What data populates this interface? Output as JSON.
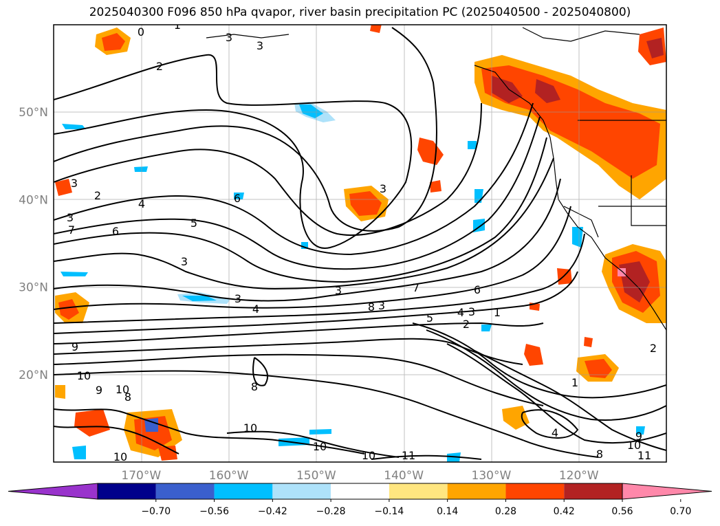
{
  "title": "2025040300 F096 850 hPa qvapor, river basin precipitation PC (2025040500 - 2025040800)",
  "chart_data": {
    "type": "contour-map",
    "title": "2025040300 F096 850 hPa qvapor, river basin precipitation PC (2025040500 - 2025040800)",
    "x_axis": {
      "ticks": [
        "170°W",
        "160°W",
        "150°W",
        "140°W",
        "130°W",
        "120°W"
      ],
      "tick_values": [
        -170,
        -160,
        -150,
        -140,
        -130,
        -120
      ]
    },
    "y_axis": {
      "ticks": [
        "20°N",
        "30°N",
        "40°N",
        "50°N"
      ],
      "tick_values": [
        20,
        30,
        40,
        50
      ]
    },
    "lon_range": [
      -180,
      -110
    ],
    "lat_range": [
      10,
      60
    ],
    "grid": true,
    "colorbar": {
      "levels": [
        -0.7,
        -0.56,
        -0.42,
        -0.28,
        -0.14,
        0.14,
        0.28,
        0.42,
        0.56,
        0.7
      ],
      "labels": [
        "−0.70",
        "−0.56",
        "−0.42",
        "−0.28",
        "−0.14",
        "0.14",
        "0.28",
        "0.42",
        "0.56",
        "0.70"
      ],
      "colors": [
        "#9933cc",
        "#00008b",
        "#3a5fcd",
        "#00bfff",
        "#aee2fa",
        "#ffffff",
        "#ffe680",
        "#ffa500",
        "#ff4500",
        "#b22222",
        "#ff88aa"
      ],
      "extend": "both"
    },
    "contour_labels": [
      "0",
      "1",
      "2",
      "3",
      "3",
      "3",
      "3",
      "3",
      "2",
      "4",
      "3",
      "6",
      "5",
      "6",
      "7",
      "3",
      "3",
      "4",
      "3",
      "7",
      "8",
      "6",
      "5",
      "4",
      "3",
      "2",
      "1",
      "9",
      "10",
      "9",
      "10",
      "8",
      "8",
      "10",
      "10",
      "10",
      "10",
      "11",
      "1",
      "4",
      "9",
      "8",
      "10",
      "11",
      "2"
    ],
    "contour_label_values": [
      0,
      1,
      2,
      3,
      3,
      3,
      3,
      3,
      2,
      4,
      3,
      6,
      5,
      6,
      7,
      3,
      3,
      4,
      3,
      7,
      8,
      6,
      5,
      4,
      3,
      2,
      1,
      9,
      10,
      9,
      10,
      8,
      8,
      10,
      10,
      10,
      10,
      11,
      1,
      4,
      9,
      8,
      10,
      11,
      2
    ]
  }
}
